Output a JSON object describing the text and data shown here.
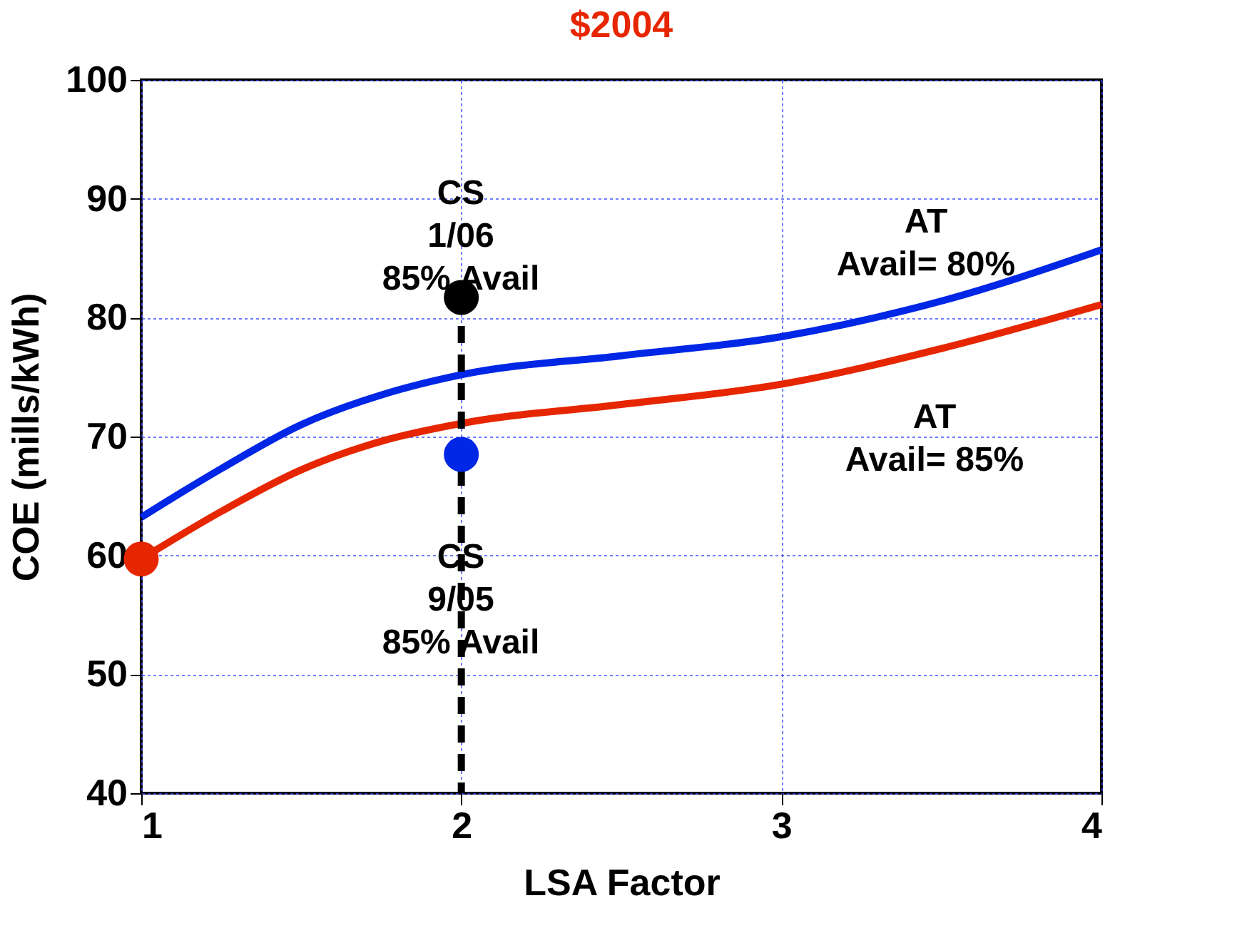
{
  "chart_data": {
    "type": "line",
    "title": "$2004",
    "xlabel": "LSA Factor",
    "ylabel": "COE (mills/kWh)",
    "xlim": [
      1,
      4
    ],
    "xticks": [
      1,
      2,
      3,
      4
    ],
    "ylim": [
      40,
      100
    ],
    "yticks": [
      40,
      50,
      60,
      70,
      80,
      90,
      100
    ],
    "grid": true,
    "legend": false,
    "series": [
      {
        "color": "#0026e6",
        "line_style": "solid",
        "x": [
          1,
          1.25,
          1.5,
          1.75,
          2,
          2.5,
          3,
          3.5,
          4
        ],
        "values": [
          63.2,
          67.3,
          71,
          73.5,
          75.2,
          76.8,
          78.4,
          81.4,
          85.7
        ]
      },
      {
        "color": "#e62600",
        "line_style": "solid",
        "x": [
          1,
          1.25,
          1.5,
          1.75,
          2,
          2.5,
          3,
          3.5,
          4
        ],
        "values": [
          59.7,
          63.7,
          67.2,
          69.6,
          71.1,
          72.7,
          74.4,
          77.4,
          81.1
        ]
      },
      {
        "color": "#000000",
        "line_style": "dashed",
        "x": [
          2,
          2
        ],
        "values": [
          81.7,
          40
        ]
      },
      {
        "type": "scatter",
        "marker": "circle",
        "x": [
          1,
          2,
          2
        ],
        "values": [
          59.7,
          81.7,
          68.5
        ],
        "colors": [
          "#e62600",
          "#000000",
          "#0026e6"
        ]
      }
    ],
    "annotations": [
      "CS\n1/06\n85% Avail",
      "CS\n9/05\n85% Avail",
      "AT\nAvail= 80%",
      "AT\nAvail= 85%"
    ]
  }
}
